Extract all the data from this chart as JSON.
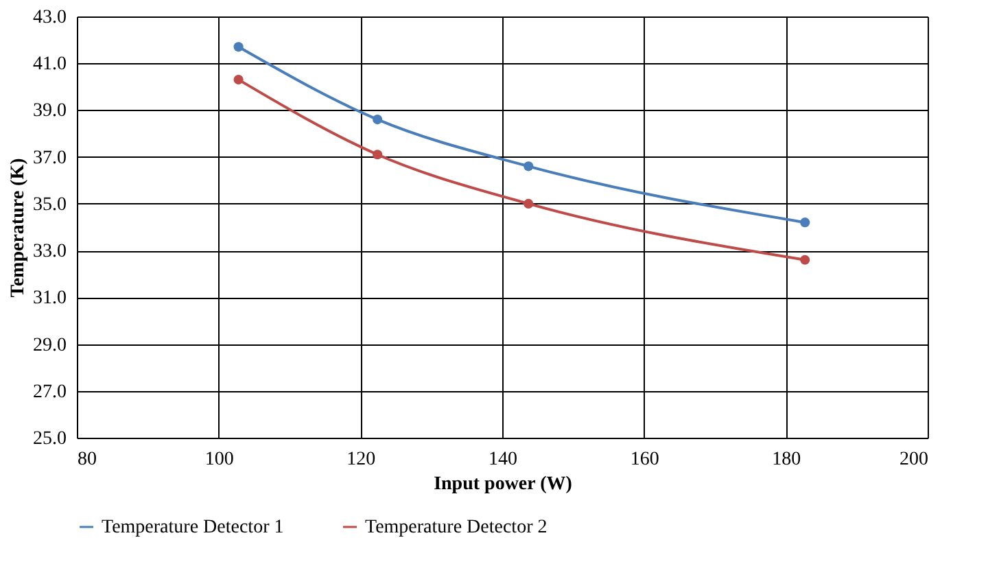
{
  "chart_data": {
    "type": "line",
    "xlabel": "Input power (W)",
    "ylabel": "Temperature (K)",
    "x": [
      102.8,
      122.4,
      143.7,
      182.7
    ],
    "series": [
      {
        "name": "Temperature Detector 1",
        "color": "#4a7ebb",
        "values": [
          41.7,
          38.6,
          36.6,
          34.2
        ]
      },
      {
        "name": "Temperature Detector 2",
        "color": "#be4b48",
        "values": [
          40.3,
          37.1,
          35.0,
          32.6
        ]
      }
    ],
    "xlim": [
      80,
      200
    ],
    "xticks": [
      80,
      100,
      120,
      140,
      160,
      180,
      200
    ],
    "ylim": [
      25,
      43
    ],
    "yticks": [
      {
        "value": 25,
        "label": "25.0"
      },
      {
        "value": 27,
        "label": "27.0"
      },
      {
        "value": 29,
        "label": "29.0"
      },
      {
        "value": 31,
        "label": "31.0"
      },
      {
        "value": 33,
        "label": "33.0"
      },
      {
        "value": 35,
        "label": "35.0"
      },
      {
        "value": 37,
        "label": "37.0"
      },
      {
        "value": 39,
        "label": "39.0"
      },
      {
        "value": 41,
        "label": "41.0"
      },
      {
        "value": 43,
        "label": "43.0"
      }
    ],
    "grid": true,
    "legend": "bottom",
    "marker": "circle",
    "line_style": "solid"
  }
}
